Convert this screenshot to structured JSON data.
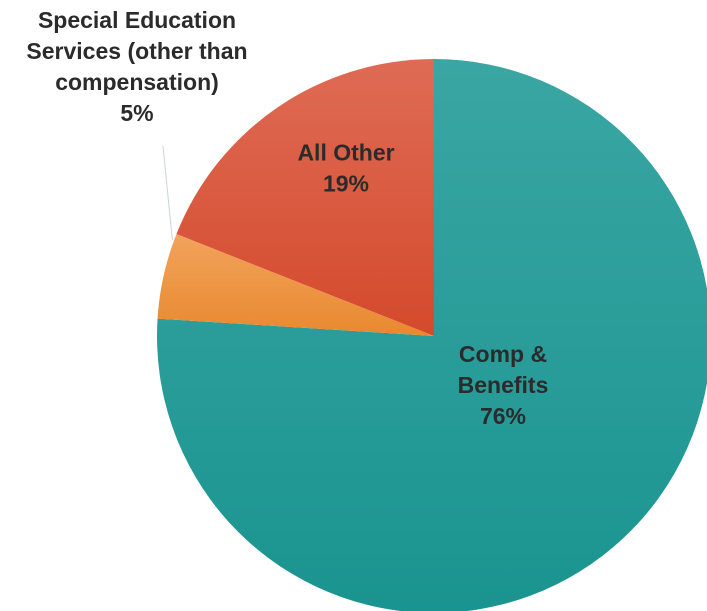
{
  "chart_data": {
    "type": "pie",
    "title": "",
    "start_angle_deg": 0,
    "direction": "clockwise",
    "slices": [
      {
        "label_lines": [
          "Comp &",
          "Benefits"
        ],
        "value_label": "76%",
        "value": 76,
        "color_top": "#3aa6a3",
        "color_bottom": "#1a9490",
        "label_color": "#2b2b2b"
      },
      {
        "label_lines": [
          "Special Education",
          "Services (other than",
          "compensation)"
        ],
        "value_label": "5%",
        "value": 5,
        "color_top": "#f2a35c",
        "color_bottom": "#e8892f",
        "label_color": "#2b2b2b",
        "leader_line": true
      },
      {
        "label_lines": [
          "All Other"
        ],
        "value_label": "19%",
        "value": 19,
        "color_top": "#df6b55",
        "color_bottom": "#d44a2c",
        "label_color": "#2b2b2b"
      }
    ]
  }
}
